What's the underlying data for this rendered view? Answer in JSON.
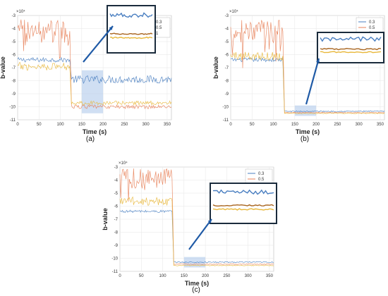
{
  "chart_data": [
    {
      "type": "line",
      "caption": "(a)",
      "xlabel": "Time (s)",
      "ylabel": "b-value",
      "y_exponent": "×10⁴",
      "xlim": [
        0,
        360
      ],
      "ylim": [
        -11,
        -3
      ],
      "xticks": [
        0,
        50,
        100,
        150,
        200,
        250,
        300,
        350
      ],
      "yticks": [
        -3,
        -4,
        -5,
        -6,
        -7,
        -8,
        -9,
        -10,
        -11
      ],
      "grid": true,
      "legend_position": "top-right",
      "highlight_window": [
        150,
        200
      ],
      "inset": true,
      "series": [
        {
          "name": "0.3",
          "color": "#4a7fc1",
          "before_mean": -6.4,
          "before_noise": 0.18,
          "after_mean": -7.9,
          "after_noise": 0.3
        },
        {
          "name": "0.5",
          "color": "#e8825a",
          "before_mean": -4.2,
          "before_noise": 0.9,
          "after_mean": -10.0,
          "after_noise": 0.15
        },
        {
          "name": "1",
          "color": "#e8b73a",
          "before_mean": -6.9,
          "before_noise": 0.3,
          "after_mean": -9.7,
          "after_noise": 0.15
        }
      ]
    },
    {
      "type": "line",
      "caption": "(b)",
      "xlabel": "Time (s)",
      "ylabel": "b-value",
      "y_exponent": "×10⁴",
      "xlim": [
        0,
        360
      ],
      "ylim": [
        -11,
        -3
      ],
      "xticks": [
        0,
        50,
        100,
        150,
        200,
        250,
        300,
        350
      ],
      "yticks": [
        -3,
        -4,
        -5,
        -6,
        -7,
        -8,
        -9,
        -10,
        -11
      ],
      "grid": true,
      "legend_position": "top-right",
      "highlight_window": [
        150,
        200
      ],
      "inset": true,
      "series": [
        {
          "name": "0.3",
          "color": "#4a7fc1",
          "before_mean": -6.4,
          "before_noise": 0.15,
          "after_mean": -10.35,
          "after_noise": 0.05
        },
        {
          "name": "0.5",
          "color": "#e8825a",
          "before_mean": -4.2,
          "before_noise": 0.9,
          "after_mean": -10.45,
          "after_noise": 0.03
        },
        {
          "name": "1",
          "color": "#e8b73a",
          "before_mean": -6.1,
          "before_noise": 0.35,
          "after_mean": -10.5,
          "after_noise": 0.03
        }
      ]
    },
    {
      "type": "line",
      "caption": "(c)",
      "xlabel": "Time (s)",
      "ylabel": "b-value",
      "y_exponent": "×10⁴",
      "xlim": [
        0,
        360
      ],
      "ylim": [
        -11,
        -3
      ],
      "xticks": [
        0,
        50,
        100,
        150,
        200,
        250,
        300,
        350
      ],
      "yticks": [
        -3,
        -4,
        -5,
        -6,
        -7,
        -8,
        -9,
        -10,
        -11
      ],
      "grid": true,
      "legend_position": "top-right",
      "highlight_window": [
        150,
        200
      ],
      "inset": true,
      "series": [
        {
          "name": "0.3",
          "color": "#4a7fc1",
          "before_mean": -6.4,
          "before_noise": 0.1,
          "after_mean": -10.3,
          "after_noise": 0.05
        },
        {
          "name": "0.5",
          "color": "#e8825a",
          "before_mean": -3.9,
          "before_noise": 0.8,
          "after_mean": -10.45,
          "after_noise": 0.03
        },
        {
          "name": "1",
          "color": "#e8b73a",
          "before_mean": -5.6,
          "before_noise": 0.35,
          "after_mean": -10.55,
          "after_noise": 0.03
        }
      ]
    }
  ]
}
